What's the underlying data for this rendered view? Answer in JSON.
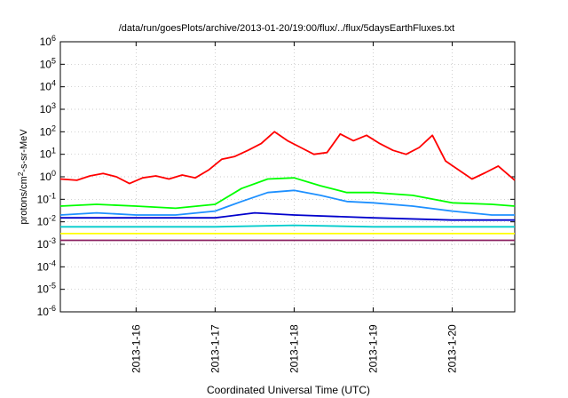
{
  "chart_data": {
    "type": "line",
    "title": "/data/run/goesPlots/archive/2013-01-20/19:00/flux/../flux/5daysEarthFluxes.txt",
    "xlabel": "Coordinated Universal Time (UTC)",
    "ylabel_prefix": "protons/cm",
    "ylabel_sup": "2",
    "ylabel_suffix": "-s-sr-MeV",
    "y_scale": "log",
    "ylim": [
      1e-06,
      1000000.0
    ],
    "xlim": [
      "2013-01-15T01:00",
      "2013-01-20T19:00"
    ],
    "grid": true,
    "legend": "none",
    "y_ticks": [
      {
        "base": "10",
        "exp": "-6",
        "v": -6
      },
      {
        "base": "10",
        "exp": "-5",
        "v": -5
      },
      {
        "base": "10",
        "exp": "-4",
        "v": -4
      },
      {
        "base": "10",
        "exp": "-3",
        "v": -3
      },
      {
        "base": "10",
        "exp": "-2",
        "v": -2
      },
      {
        "base": "10",
        "exp": "-1",
        "v": -1
      },
      {
        "base": "10",
        "exp": "0",
        "v": 0
      },
      {
        "base": "10",
        "exp": "1",
        "v": 1
      },
      {
        "base": "10",
        "exp": "2",
        "v": 2
      },
      {
        "base": "10",
        "exp": "3",
        "v": 3
      },
      {
        "base": "10",
        "exp": "4",
        "v": 4
      },
      {
        "base": "10",
        "exp": "5",
        "v": 5
      },
      {
        "base": "10",
        "exp": "6",
        "v": 6
      }
    ],
    "x_ticks": [
      {
        "label": "2013-1-16",
        "t": "2013-01-16T00:00"
      },
      {
        "label": "2013-1-17",
        "t": "2013-01-17T00:00"
      },
      {
        "label": "2013-1-18",
        "t": "2013-01-18T00:00"
      },
      {
        "label": "2013-1-19",
        "t": "2013-01-19T00:00"
      },
      {
        "label": "2013-1-20",
        "t": "2013-01-20T00:00"
      }
    ],
    "series": [
      {
        "color": "#ff0000",
        "points": [
          [
            "2013-01-15T01:00",
            0.8
          ],
          [
            "2013-01-15T06:00",
            0.7
          ],
          [
            "2013-01-15T10:00",
            1.1
          ],
          [
            "2013-01-15T14:00",
            1.4
          ],
          [
            "2013-01-15T18:00",
            1.0
          ],
          [
            "2013-01-15T22:00",
            0.5
          ],
          [
            "2013-01-16T02:00",
            0.9
          ],
          [
            "2013-01-16T06:00",
            1.1
          ],
          [
            "2013-01-16T10:00",
            0.8
          ],
          [
            "2013-01-16T14:00",
            1.2
          ],
          [
            "2013-01-16T18:00",
            0.9
          ],
          [
            "2013-01-16T22:00",
            2.0
          ],
          [
            "2013-01-17T02:00",
            6.0
          ],
          [
            "2013-01-17T06:00",
            8.0
          ],
          [
            "2013-01-17T10:00",
            15
          ],
          [
            "2013-01-17T14:00",
            30
          ],
          [
            "2013-01-17T18:00",
            100
          ],
          [
            "2013-01-17T22:00",
            40
          ],
          [
            "2013-01-18T02:00",
            20
          ],
          [
            "2013-01-18T06:00",
            10
          ],
          [
            "2013-01-18T10:00",
            12
          ],
          [
            "2013-01-18T14:00",
            80
          ],
          [
            "2013-01-18T18:00",
            40
          ],
          [
            "2013-01-18T22:00",
            70
          ],
          [
            "2013-01-19T02:00",
            30
          ],
          [
            "2013-01-19T06:00",
            15
          ],
          [
            "2013-01-19T10:00",
            10
          ],
          [
            "2013-01-19T14:00",
            20
          ],
          [
            "2013-01-19T18:00",
            70
          ],
          [
            "2013-01-19T22:00",
            5
          ],
          [
            "2013-01-20T02:00",
            2
          ],
          [
            "2013-01-20T06:00",
            0.8
          ],
          [
            "2013-01-20T10:00",
            1.5
          ],
          [
            "2013-01-20T14:00",
            3.0
          ],
          [
            "2013-01-20T19:00",
            0.7
          ]
        ]
      },
      {
        "color": "#00ff00",
        "points": [
          [
            "2013-01-15T01:00",
            0.05
          ],
          [
            "2013-01-15T12:00",
            0.06
          ],
          [
            "2013-01-16T00:00",
            0.05
          ],
          [
            "2013-01-16T12:00",
            0.04
          ],
          [
            "2013-01-17T00:00",
            0.06
          ],
          [
            "2013-01-17T08:00",
            0.3
          ],
          [
            "2013-01-17T16:00",
            0.8
          ],
          [
            "2013-01-18T00:00",
            0.9
          ],
          [
            "2013-01-18T08:00",
            0.4
          ],
          [
            "2013-01-18T16:00",
            0.2
          ],
          [
            "2013-01-19T00:00",
            0.2
          ],
          [
            "2013-01-19T12:00",
            0.15
          ],
          [
            "2013-01-20T00:00",
            0.07
          ],
          [
            "2013-01-20T12:00",
            0.06
          ],
          [
            "2013-01-20T19:00",
            0.05
          ]
        ]
      },
      {
        "color": "#1e90ff",
        "points": [
          [
            "2013-01-15T01:00",
            0.02
          ],
          [
            "2013-01-15T12:00",
            0.025
          ],
          [
            "2013-01-16T00:00",
            0.02
          ],
          [
            "2013-01-16T12:00",
            0.02
          ],
          [
            "2013-01-17T00:00",
            0.03
          ],
          [
            "2013-01-17T08:00",
            0.08
          ],
          [
            "2013-01-17T16:00",
            0.2
          ],
          [
            "2013-01-18T00:00",
            0.25
          ],
          [
            "2013-01-18T08:00",
            0.15
          ],
          [
            "2013-01-18T16:00",
            0.08
          ],
          [
            "2013-01-19T00:00",
            0.07
          ],
          [
            "2013-01-19T12:00",
            0.05
          ],
          [
            "2013-01-20T00:00",
            0.03
          ],
          [
            "2013-01-20T12:00",
            0.02
          ],
          [
            "2013-01-20T19:00",
            0.02
          ]
        ]
      },
      {
        "color": "#0000cc",
        "points": [
          [
            "2013-01-15T01:00",
            0.015
          ],
          [
            "2013-01-16T00:00",
            0.015
          ],
          [
            "2013-01-17T00:00",
            0.015
          ],
          [
            "2013-01-17T12:00",
            0.025
          ],
          [
            "2013-01-18T00:00",
            0.02
          ],
          [
            "2013-01-19T00:00",
            0.015
          ],
          [
            "2013-01-20T00:00",
            0.012
          ],
          [
            "2013-01-20T19:00",
            0.012
          ]
        ]
      },
      {
        "color": "#00cccc",
        "points": [
          [
            "2013-01-15T01:00",
            0.006
          ],
          [
            "2013-01-16T00:00",
            0.006
          ],
          [
            "2013-01-17T00:00",
            0.006
          ],
          [
            "2013-01-18T00:00",
            0.007
          ],
          [
            "2013-01-19T00:00",
            0.006
          ],
          [
            "2013-01-20T00:00",
            0.006
          ],
          [
            "2013-01-20T19:00",
            0.006
          ]
        ]
      },
      {
        "color": "#ffff00",
        "points": [
          [
            "2013-01-15T01:00",
            0.003
          ],
          [
            "2013-01-20T19:00",
            0.003
          ]
        ]
      },
      {
        "color": "#8b2060",
        "points": [
          [
            "2013-01-15T01:00",
            0.0015
          ],
          [
            "2013-01-20T19:00",
            0.0015
          ]
        ]
      }
    ]
  }
}
